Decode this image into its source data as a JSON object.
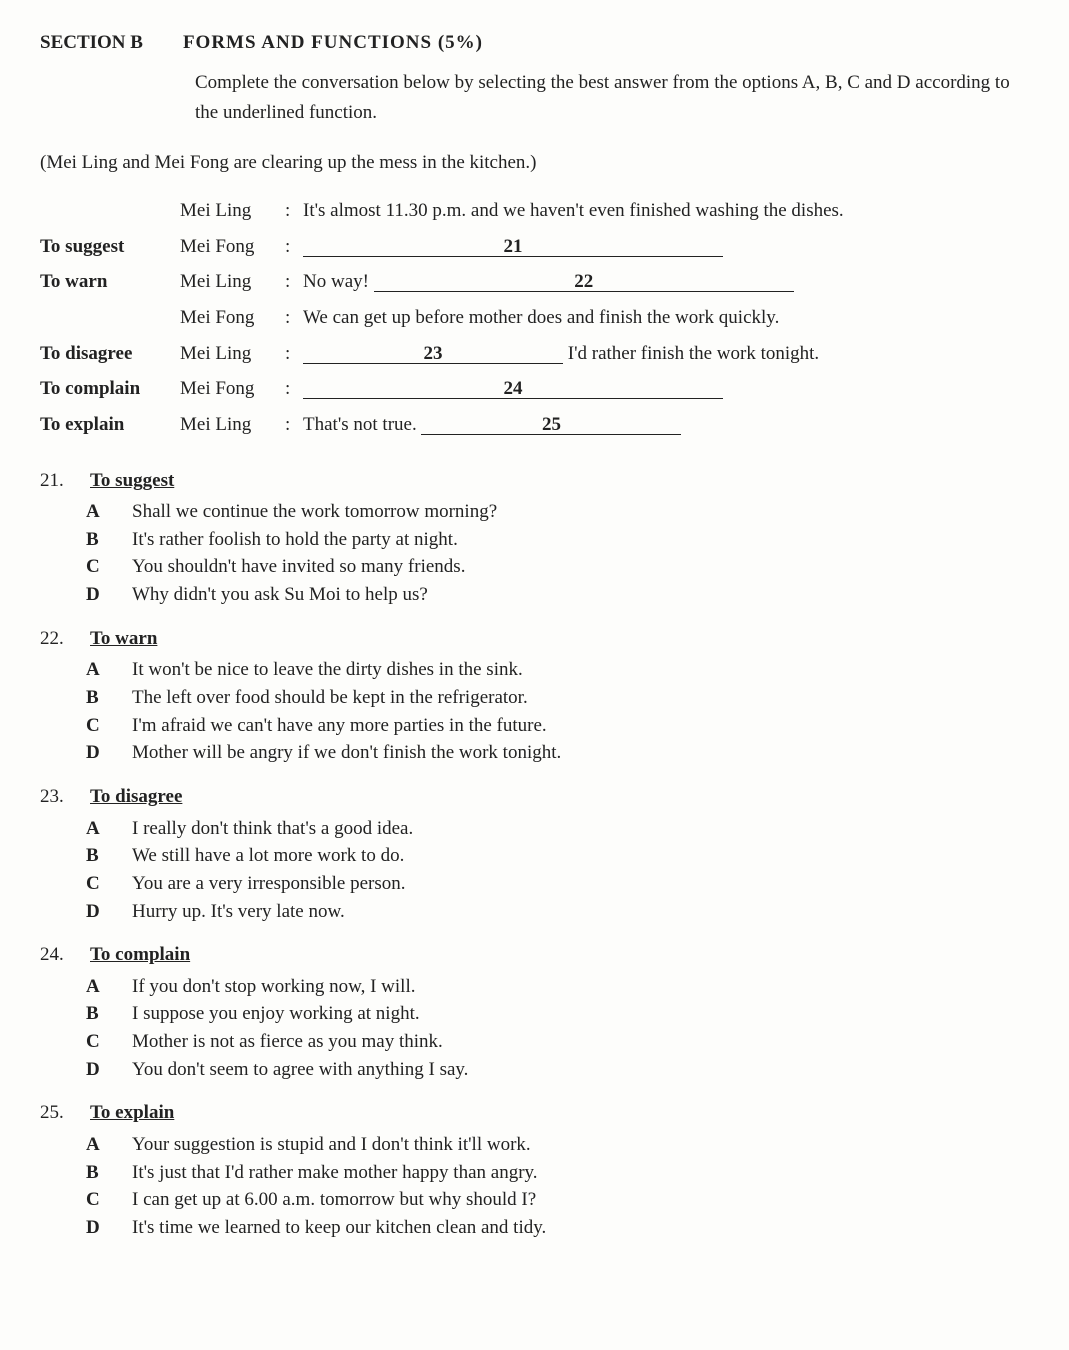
{
  "header": {
    "section": "SECTION B",
    "title": "FORMS AND FUNCTIONS (5%)"
  },
  "instruction": "Complete the conversation below by selecting the best answer from the options A, B, C and D according to the underlined function.",
  "context": "(Mei Ling and Mei Fong are clearing up the mess in the kitchen.)",
  "dialogue": [
    {
      "func": "",
      "speaker": "Mei Ling",
      "speech_pre": "It's almost 11.30 p.m. and we haven't even finished washing the dishes.",
      "blank": "",
      "speech_post": "",
      "blank_class": ""
    },
    {
      "func": "To suggest",
      "speaker": "Mei Fong",
      "speech_pre": "",
      "blank": "21",
      "speech_post": "",
      "blank_class": "blank-wide"
    },
    {
      "func": "To warn",
      "speaker": "Mei Ling",
      "speech_pre": "No way! ",
      "blank": "22",
      "speech_post": "",
      "blank_class": "blank-wide"
    },
    {
      "func": "",
      "speaker": "Mei Fong",
      "speech_pre": "We can get up before mother does and finish the work quickly.",
      "blank": "",
      "speech_post": "",
      "blank_class": ""
    },
    {
      "func": "To disagree",
      "speaker": "Mei Ling",
      "speech_pre": "",
      "blank": "23",
      "speech_post": " I'd rather finish the work tonight.",
      "blank_class": "blank"
    },
    {
      "func": "To complain",
      "speaker": "Mei Fong",
      "speech_pre": "",
      "blank": "24",
      "speech_post": "",
      "blank_class": "blank-wide"
    },
    {
      "func": "To explain",
      "speaker": "Mei Ling",
      "speech_pre": "That's not true. ",
      "blank": "25",
      "speech_post": "",
      "blank_class": "blank"
    }
  ],
  "questions": [
    {
      "num": "21.",
      "func": "To suggest",
      "opts": [
        {
          "l": "A",
          "t": "Shall we continue the work tomorrow morning?"
        },
        {
          "l": "B",
          "t": "It's rather foolish to hold the party at night."
        },
        {
          "l": "C",
          "t": "You shouldn't have invited so many friends."
        },
        {
          "l": "D",
          "t": "Why didn't you ask Su Moi to help us?"
        }
      ]
    },
    {
      "num": "22.",
      "func": "To warn",
      "opts": [
        {
          "l": "A",
          "t": "It won't be nice to leave the dirty dishes in the sink."
        },
        {
          "l": "B",
          "t": "The left over food should be kept in the refrigerator."
        },
        {
          "l": "C",
          "t": "I'm afraid we can't have any more parties in the future."
        },
        {
          "l": "D",
          "t": "Mother will be angry if we don't finish the work tonight."
        }
      ]
    },
    {
      "num": "23.",
      "func": "To disagree",
      "opts": [
        {
          "l": "A",
          "t": "I really don't think that's a good idea."
        },
        {
          "l": "B",
          "t": "We still have a lot more work to do."
        },
        {
          "l": "C",
          "t": "You are a very irresponsible person."
        },
        {
          "l": "D",
          "t": "Hurry up. It's very late now."
        }
      ]
    },
    {
      "num": "24.",
      "func": "To complain",
      "opts": [
        {
          "l": "A",
          "t": "If you don't stop working now, I will."
        },
        {
          "l": "B",
          "t": "I suppose you enjoy working at night."
        },
        {
          "l": "C",
          "t": "Mother is not as fierce as you may think."
        },
        {
          "l": "D",
          "t": "You don't seem to agree with anything I say."
        }
      ]
    },
    {
      "num": "25.",
      "func": "To explain",
      "opts": [
        {
          "l": "A",
          "t": "Your suggestion is stupid and I don't think it'll work."
        },
        {
          "l": "B",
          "t": "It's just that I'd rather make mother happy than angry."
        },
        {
          "l": "C",
          "t": "I can get up at 6.00 a.m. tomorrow but why should I?"
        },
        {
          "l": "D",
          "t": "It's time we learned to keep our kitchen clean and tidy."
        }
      ]
    }
  ]
}
